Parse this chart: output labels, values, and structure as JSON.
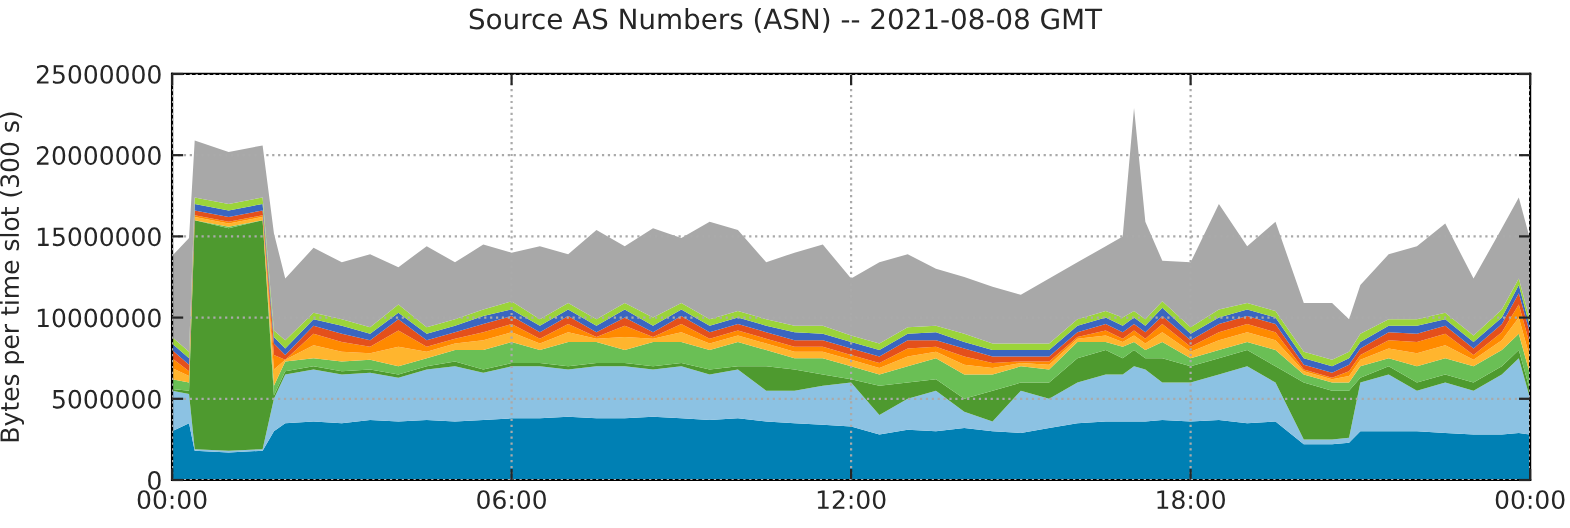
{
  "chart_data": {
    "type": "area",
    "stacked": true,
    "title": "Source AS Numbers (ASN) -- 2021-08-08 GMT",
    "ylabel": "Bytes per time slot (300 s)",
    "x": [
      0,
      0.3,
      0.4,
      1.0,
      1.6,
      1.8,
      2.0,
      2.5,
      3.0,
      3.5,
      4.0,
      4.5,
      5.0,
      5.5,
      6.0,
      6.5,
      7.0,
      7.5,
      8.0,
      8.5,
      9.0,
      9.5,
      10.0,
      10.5,
      11.0,
      11.5,
      12.0,
      12.5,
      13.0,
      13.5,
      14.0,
      14.5,
      15.0,
      15.5,
      16.0,
      16.5,
      16.8,
      17.0,
      17.2,
      17.5,
      18.0,
      18.5,
      19.0,
      19.5,
      20.0,
      20.5,
      20.8,
      21.0,
      21.5,
      22.0,
      22.5,
      23.0,
      23.5,
      23.8,
      24.0
    ],
    "xlim": [
      0,
      24
    ],
    "xticks": [
      {
        "value": 0,
        "label": "00:00"
      },
      {
        "value": 6,
        "label": "06:00"
      },
      {
        "value": 12,
        "label": "12:00"
      },
      {
        "value": 18,
        "label": "18:00"
      },
      {
        "value": 24,
        "label": "00:00"
      }
    ],
    "ylim": [
      0,
      25000000
    ],
    "yticks": [
      0,
      5000000,
      10000000,
      15000000,
      20000000,
      25000000
    ],
    "grid": true,
    "series": [
      {
        "color": "#0080b4",
        "values": [
          3000000.0,
          3500000.0,
          1800000.0,
          1700000.0,
          1800000.0,
          3000000.0,
          3500000.0,
          3600000.0,
          3500000.0,
          3700000.0,
          3600000.0,
          3700000.0,
          3600000.0,
          3700000.0,
          3800000.0,
          3800000.0,
          3900000.0,
          3800000.0,
          3800000.0,
          3900000.0,
          3800000.0,
          3700000.0,
          3800000.0,
          3600000.0,
          3500000.0,
          3400000.0,
          3300000.0,
          2800000.0,
          3100000.0,
          3000000.0,
          3200000.0,
          3000000.0,
          2900000.0,
          3200000.0,
          3500000.0,
          3600000.0,
          3600000.0,
          3600000.0,
          3600000.0,
          3700000.0,
          3600000.0,
          3700000.0,
          3500000.0,
          3600000.0,
          2200000.0,
          2200000.0,
          2300000.0,
          3000000.0,
          3000000.0,
          3000000.0,
          2900000.0,
          2800000.0,
          2800000.0,
          2900000.0,
          2800000.0
        ]
      },
      {
        "color": "#8cc2e3",
        "values": [
          2500000.0,
          1800000.0,
          100000.0,
          100000.0,
          100000.0,
          2000000.0,
          3000000.0,
          3200000.0,
          3000000.0,
          2900000.0,
          2700000.0,
          3100000.0,
          3400000.0,
          2900000.0,
          3200000.0,
          3200000.0,
          2900000.0,
          3200000.0,
          3200000.0,
          2900000.0,
          3200000.0,
          2800000.0,
          3000000.0,
          1900000.0,
          2000000.0,
          2400000.0,
          2700000.0,
          1200000.0,
          1900000.0,
          2500000.0,
          1000000.0,
          600000.0,
          2600000.0,
          1800000.0,
          2500000.0,
          2900000.0,
          2900000.0,
          3400000.0,
          3200000.0,
          2300000.0,
          2400000.0,
          2800000.0,
          3500000.0,
          2400000.0,
          300000.0,
          300000.0,
          300000.0,
          3000000.0,
          3500000.0,
          2500000.0,
          3100000.0,
          2700000.0,
          3700000.0,
          4600000.0,
          2200000.0
        ]
      },
      {
        "color": "#4e9a2f",
        "values": [
          100000.0,
          200000.0,
          14100000.0,
          13700000.0,
          14100000.0,
          200000.0,
          200000.0,
          200000.0,
          200000.0,
          200000.0,
          200000.0,
          200000.0,
          300000.0,
          200000.0,
          200000.0,
          200000.0,
          200000.0,
          200000.0,
          200000.0,
          200000.0,
          200000.0,
          300000.0,
          200000.0,
          1500000.0,
          1300000.0,
          700000.0,
          200000.0,
          1800000.0,
          1000000.0,
          700000.0,
          800000.0,
          1900000.0,
          500000.0,
          1000000.0,
          1500000.0,
          1500000.0,
          1000000.0,
          1000000.0,
          700000.0,
          1500000.0,
          1000000.0,
          1000000.0,
          1000000.0,
          1000000.0,
          3500000.0,
          3000000.0,
          2900000.0,
          300000.0,
          500000.0,
          500000.0,
          500000.0,
          500000.0,
          500000.0,
          500000.0,
          500000.0
        ]
      },
      {
        "color": "#6abf55",
        "values": [
          600000.0,
          500000.0,
          0.0,
          100000.0,
          0.0,
          600000.0,
          600000.0,
          500000.0,
          600000.0,
          600000.0,
          500000.0,
          500000.0,
          700000.0,
          1200000.0,
          1300000.0,
          800000.0,
          1500000.0,
          1300000.0,
          800000.0,
          1500000.0,
          1300000.0,
          1200000.0,
          1500000.0,
          1000000.0,
          700000.0,
          1000000.0,
          800000.0,
          700000.0,
          1000000.0,
          1300000.0,
          1500000.0,
          1000000.0,
          1000000.0,
          800000.0,
          1000000.0,
          500000.0,
          700000.0,
          500000.0,
          500000.0,
          1000000.0,
          500000.0,
          500000.0,
          500000.0,
          1000000.0,
          500000.0,
          500000.0,
          500000.0,
          700000.0,
          500000.0,
          1000000.0,
          1000000.0,
          1000000.0,
          1000000.0,
          1000000.0,
          1000000.0
        ]
      },
      {
        "color": "#ffb52e",
        "values": [
          700000.0,
          400000.0,
          200000.0,
          200000.0,
          200000.0,
          1000000.0,
          100000.0,
          800000.0,
          600000.0,
          400000.0,
          1200000.0,
          400000.0,
          400000.0,
          600000.0,
          600000.0,
          400000.0,
          600000.0,
          200000.0,
          800000.0,
          200000.0,
          600000.0,
          400000.0,
          400000.0,
          400000.0,
          400000.0,
          400000.0,
          400000.0,
          400000.0,
          600000.0,
          400000.0,
          600000.0,
          400000.0,
          200000.0,
          300000.0,
          200000.0,
          400000.0,
          300000.0,
          400000.0,
          400000.0,
          600000.0,
          400000.0,
          600000.0,
          600000.0,
          600000.0,
          200000.0,
          200000.0,
          400000.0,
          400000.0,
          600000.0,
          800000.0,
          800000.0,
          400000.0,
          600000.0,
          1000000.0,
          1000000.0
        ]
      },
      {
        "color": "#ff8a00",
        "values": [
          600000.0,
          300000.0,
          100000.0,
          100000.0,
          100000.0,
          900000.0,
          0.0,
          700000.0,
          600000.0,
          400000.0,
          1000000.0,
          300000.0,
          300000.0,
          500000.0,
          500000.0,
          300000.0,
          500000.0,
          100000.0,
          700000.0,
          100000.0,
          500000.0,
          300000.0,
          300000.0,
          300000.0,
          300000.0,
          300000.0,
          300000.0,
          300000.0,
          500000.0,
          300000.0,
          500000.0,
          300000.0,
          100000.0,
          200000.0,
          100000.0,
          300000.0,
          200000.0,
          300000.0,
          300000.0,
          500000.0,
          300000.0,
          500000.0,
          500000.0,
          500000.0,
          100000.0,
          100000.0,
          300000.0,
          300000.0,
          500000.0,
          700000.0,
          700000.0,
          300000.0,
          500000.0,
          800000.0,
          800000.0
        ]
      },
      {
        "color": "#e4501b",
        "values": [
          500000.0,
          400000.0,
          300000.0,
          300000.0,
          300000.0,
          700000.0,
          300000.0,
          500000.0,
          500000.0,
          400000.0,
          700000.0,
          400000.0,
          400000.0,
          500000.0,
          500000.0,
          400000.0,
          500000.0,
          300000.0,
          500000.0,
          300000.0,
          500000.0,
          400000.0,
          400000.0,
          400000.0,
          400000.0,
          400000.0,
          400000.0,
          400000.0,
          500000.0,
          400000.0,
          500000.0,
          400000.0,
          300000.0,
          300000.0,
          300000.0,
          400000.0,
          400000.0,
          400000.0,
          400000.0,
          500000.0,
          400000.0,
          500000.0,
          500000.0,
          500000.0,
          300000.0,
          300000.0,
          400000.0,
          400000.0,
          500000.0,
          500000.0,
          500000.0,
          400000.0,
          500000.0,
          700000.0,
          700000.0
        ]
      },
      {
        "color": "#3a66c0",
        "values": [
          400000.0,
          400000.0,
          400000.0,
          400000.0,
          400000.0,
          400000.0,
          400000.0,
          400000.0,
          500000.0,
          400000.0,
          400000.0,
          400000.0,
          400000.0,
          500000.0,
          400000.0,
          400000.0,
          400000.0,
          400000.0,
          500000.0,
          400000.0,
          400000.0,
          400000.0,
          400000.0,
          400000.0,
          500000.0,
          400000.0,
          400000.0,
          400000.0,
          400000.0,
          500000.0,
          400000.0,
          400000.0,
          400000.0,
          400000.0,
          400000.0,
          400000.0,
          400000.0,
          400000.0,
          400000.0,
          500000.0,
          400000.0,
          400000.0,
          400000.0,
          400000.0,
          400000.0,
          400000.0,
          400000.0,
          400000.0,
          400000.0,
          500000.0,
          400000.0,
          400000.0,
          400000.0,
          500000.0,
          400000.0
        ]
      },
      {
        "color": "#9bd43a",
        "values": [
          400000.0,
          400000.0,
          400000.0,
          400000.0,
          400000.0,
          400000.0,
          500000.0,
          400000.0,
          400000.0,
          400000.0,
          500000.0,
          400000.0,
          400000.0,
          400000.0,
          500000.0,
          400000.0,
          400000.0,
          400000.0,
          400000.0,
          500000.0,
          400000.0,
          400000.0,
          400000.0,
          400000.0,
          400000.0,
          500000.0,
          400000.0,
          400000.0,
          400000.0,
          400000.0,
          500000.0,
          400000.0,
          400000.0,
          400000.0,
          400000.0,
          400000.0,
          500000.0,
          400000.0,
          400000.0,
          400000.0,
          400000.0,
          500000.0,
          400000.0,
          400000.0,
          400000.0,
          400000.0,
          400000.0,
          500000.0,
          400000.0,
          400000.0,
          400000.0,
          400000.0,
          500000.0,
          400000.0,
          400000.0
        ]
      },
      {
        "color": "#a8a8a8",
        "values": [
          5000000.0,
          7000000.0,
          3500000.0,
          3200000.0,
          3200000.0,
          6000000.0,
          3800000.0,
          4000000.0,
          3500000.0,
          4500000.0,
          2300000.0,
          5000000.0,
          3500000.0,
          4000000.0,
          3000000.0,
          4500000.0,
          3000000.0,
          5500000.0,
          3500000.0,
          5500000.0,
          4000000.0,
          6000000.0,
          5000000.0,
          3500000.0,
          4500000.0,
          5000000.0,
          3500000.0,
          5000000.0,
          4500000.0,
          3500000.0,
          3500000.0,
          3500000.0,
          3000000.0,
          4000000.0,
          3500000.0,
          4000000.0,
          5000000.0,
          12500000.0,
          6000000.0,
          2500000.0,
          4000000.0,
          6500000.0,
          3500000.0,
          5500000.0,
          3000000.0,
          3500000.0,
          2000000.0,
          3000000.0,
          4000000.0,
          4500000.0,
          5500000.0,
          3500000.0,
          5000000.0,
          5000000.0,
          5000000.0
        ]
      }
    ]
  }
}
